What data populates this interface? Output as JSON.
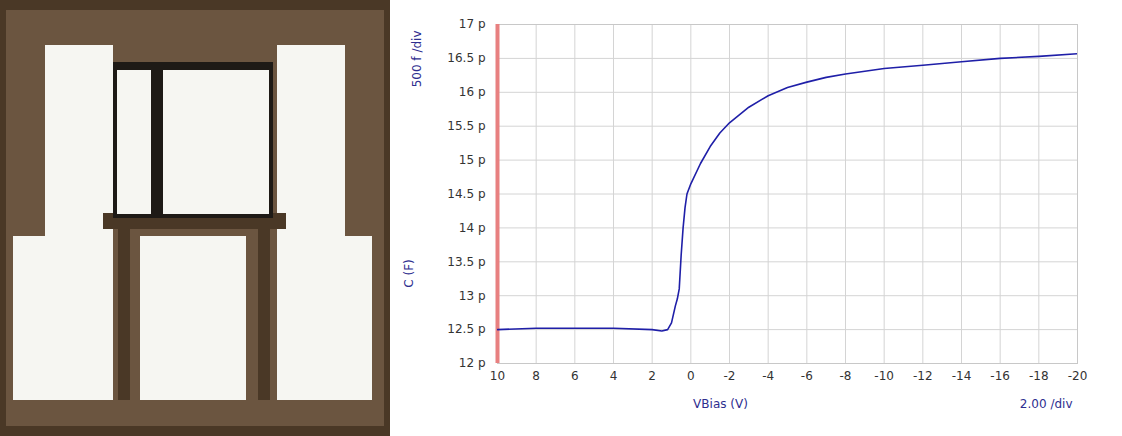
{
  "chart_data": {
    "type": "line",
    "x_label": "VBias (V)",
    "x_scale_label": "2.00 /div",
    "y_label": "C (F)",
    "y_scale_label": "500 f /div",
    "x": [
      10,
      8,
      6,
      4,
      2,
      1.5,
      1.2,
      1.0,
      0.8,
      0.7,
      0.6,
      0.5,
      0.4,
      0.3,
      0.2,
      0,
      -0.5,
      -1,
      -1.5,
      -2,
      -3,
      -4,
      -5,
      -6,
      -7,
      -8,
      -10,
      -12,
      -14,
      -16,
      -18,
      -20
    ],
    "series": [
      {
        "name": "C",
        "color": "#1f1fa8",
        "values": [
          12.5,
          12.52,
          12.52,
          12.52,
          12.5,
          12.48,
          12.5,
          12.6,
          12.85,
          12.95,
          13.1,
          13.6,
          14.0,
          14.3,
          14.5,
          14.65,
          14.95,
          15.2,
          15.4,
          15.55,
          15.78,
          15.95,
          16.07,
          16.15,
          16.22,
          16.27,
          16.35,
          16.4,
          16.45,
          16.5,
          16.53,
          16.57
        ]
      }
    ],
    "xlim": [
      10,
      -20
    ],
    "xticks": [
      10,
      8,
      6,
      4,
      2,
      0,
      -2,
      -4,
      -6,
      -8,
      -10,
      -12,
      -14,
      -16,
      -18,
      -20
    ],
    "ylim": [
      12,
      17
    ],
    "yticks": [
      {
        "value": 12,
        "label": "12 p"
      },
      {
        "value": 12.5,
        "label": "12.5 p"
      },
      {
        "value": 13,
        "label": "13 p"
      },
      {
        "value": 13.5,
        "label": "13.5 p"
      },
      {
        "value": 14,
        "label": "14 p"
      },
      {
        "value": 14.5,
        "label": "14.5 p"
      },
      {
        "value": 15,
        "label": "15 p"
      },
      {
        "value": 15.5,
        "label": "15.5 p"
      },
      {
        "value": 16,
        "label": "16 p"
      },
      {
        "value": 16.5,
        "label": "16.5 p"
      },
      {
        "value": 17,
        "label": "17 p"
      }
    ],
    "grid": true
  }
}
